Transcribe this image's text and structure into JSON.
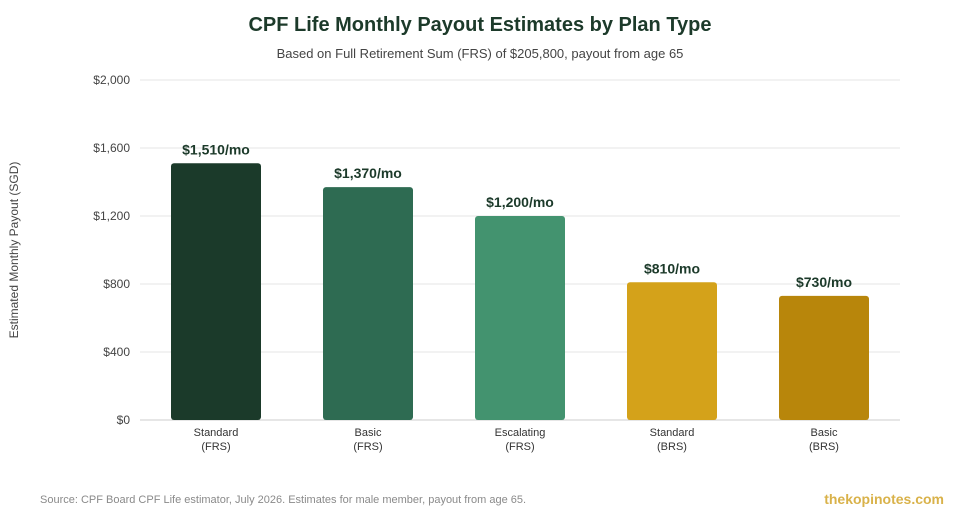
{
  "chart_data": {
    "type": "bar",
    "title": "CPF Life Monthly Payout Estimates by Plan Type",
    "subtitle": "Based on Full Retirement Sum (FRS) of $205,800, payout from age 65",
    "ylabel": "Estimated Monthly Payout (SGD)",
    "xlabel": "",
    "ylim": [
      0,
      2000
    ],
    "yticks": [
      0,
      400,
      800,
      1200,
      1600,
      2000
    ],
    "ytick_labels": [
      "$0",
      "$400",
      "$800",
      "$1,200",
      "$1,600",
      "$2,000"
    ],
    "grid": true,
    "categories": [
      [
        "Standard",
        "(FRS)"
      ],
      [
        "Basic",
        "(FRS)"
      ],
      [
        "Escalating",
        "(FRS)"
      ],
      [
        "Standard",
        "(BRS)"
      ],
      [
        "Basic",
        "(BRS)"
      ]
    ],
    "values": [
      1510,
      1370,
      1200,
      810,
      730
    ],
    "data_labels": [
      "$1,510/mo",
      "$1,370/mo",
      "$1,200/mo",
      "$810/mo",
      "$730/mo"
    ],
    "colors": [
      "#1b3a2a",
      "#2e6b52",
      "#43936f",
      "#d4a21a",
      "#b8860b"
    ]
  },
  "footer": {
    "source": "Source: CPF Board CPF Life estimator, July 2026. Estimates for male member, payout from age 65.",
    "brand": "thekopinotes.com"
  }
}
